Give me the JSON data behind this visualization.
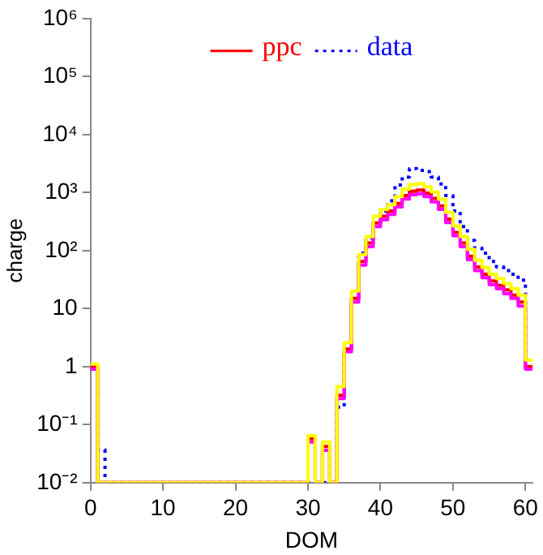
{
  "chart_data": {
    "type": "histogram",
    "xlabel": "DOM",
    "ylabel": "charge",
    "bins": [
      0,
      1,
      2,
      3,
      4,
      5,
      6,
      7,
      8,
      9,
      10,
      11,
      12,
      13,
      14,
      15,
      16,
      17,
      18,
      19,
      20,
      21,
      22,
      23,
      24,
      25,
      26,
      27,
      28,
      29,
      30,
      31,
      32,
      33,
      34,
      35,
      36,
      37,
      38,
      39,
      40,
      41,
      42,
      43,
      44,
      45,
      46,
      47,
      48,
      49,
      50,
      51,
      52,
      53,
      54,
      55,
      56,
      57,
      58,
      59,
      60,
      61
    ],
    "series": [
      {
        "color": "#ffff00",
        "line_style": "solid",
        "values": [
          1.1,
          null,
          null,
          null,
          null,
          null,
          null,
          null,
          null,
          null,
          null,
          null,
          null,
          null,
          null,
          null,
          null,
          null,
          null,
          null,
          null,
          null,
          null,
          null,
          null,
          null,
          null,
          null,
          null,
          null,
          0.065,
          null,
          0.05,
          null,
          0.45,
          2.6,
          20,
          85,
          175,
          390,
          510,
          620,
          850,
          1150,
          1370,
          1430,
          1270,
          1030,
          770,
          455,
          265,
          175,
          105,
          68,
          51,
          39,
          33,
          27,
          22,
          17,
          1.3
        ]
      },
      {
        "color": "#ff00ff",
        "line_style": "solid",
        "values": [
          0.9,
          null,
          null,
          null,
          null,
          null,
          null,
          null,
          null,
          null,
          null,
          null,
          null,
          null,
          null,
          null,
          null,
          null,
          null,
          null,
          null,
          null,
          null,
          null,
          null,
          null,
          null,
          null,
          null,
          null,
          0.05,
          null,
          0.036,
          null,
          0.28,
          1.8,
          13,
          56,
          117,
          260,
          340,
          420,
          565,
          775,
          915,
          955,
          850,
          690,
          515,
          305,
          180,
          117,
          70,
          45,
          34,
          26,
          22,
          18,
          15,
          11,
          0.9
        ]
      },
      {
        "name": "ppc",
        "color": "#ff0000",
        "line_style": "solid",
        "values": [
          1,
          null,
          null,
          null,
          null,
          null,
          null,
          null,
          null,
          null,
          null,
          null,
          null,
          null,
          null,
          null,
          null,
          null,
          null,
          null,
          null,
          null,
          null,
          null,
          null,
          null,
          null,
          null,
          null,
          null,
          0.057,
          null,
          0.042,
          null,
          0.32,
          2,
          15,
          65,
          135,
          300,
          390,
          480,
          650,
          890,
          1050,
          1100,
          980,
          790,
          590,
          350,
          205,
          135,
          80,
          52,
          39,
          30,
          25,
          21,
          17,
          13,
          1
        ]
      },
      {
        "name": "data",
        "color": "#0000ff",
        "line_style": "dotted",
        "values": [
          1,
          0.037,
          null,
          null,
          null,
          null,
          null,
          null,
          null,
          null,
          null,
          null,
          null,
          null,
          null,
          null,
          null,
          null,
          null,
          null,
          null,
          null,
          null,
          null,
          null,
          null,
          null,
          null,
          null,
          null,
          null,
          null,
          null,
          null,
          0.2,
          2,
          15,
          90,
          165,
          300,
          480,
          720,
          1350,
          1850,
          2600,
          2400,
          2300,
          1850,
          1400,
          890,
          480,
          260,
          150,
          110,
          90,
          65,
          52,
          45,
          39,
          31,
          1
        ]
      }
    ],
    "log": true,
    "xlim": [
      0,
      61
    ],
    "xticks": [
      0,
      10,
      20,
      30,
      40,
      50,
      60
    ],
    "ylim": [
      0.01,
      1000000
    ],
    "yticks": [
      {
        "value": 0.01,
        "label": "10⁻²"
      },
      {
        "value": 0.1,
        "label": "10⁻¹"
      },
      1,
      10,
      {
        "value": 100,
        "label": "10²"
      },
      {
        "value": 1000,
        "label": "10³"
      },
      {
        "value": 10000,
        "label": "10⁴"
      },
      {
        "value": 100000,
        "label": "10⁵"
      },
      {
        "value": 1000000,
        "label": "10⁶"
      }
    ],
    "grid": false,
    "legend": "top"
  }
}
